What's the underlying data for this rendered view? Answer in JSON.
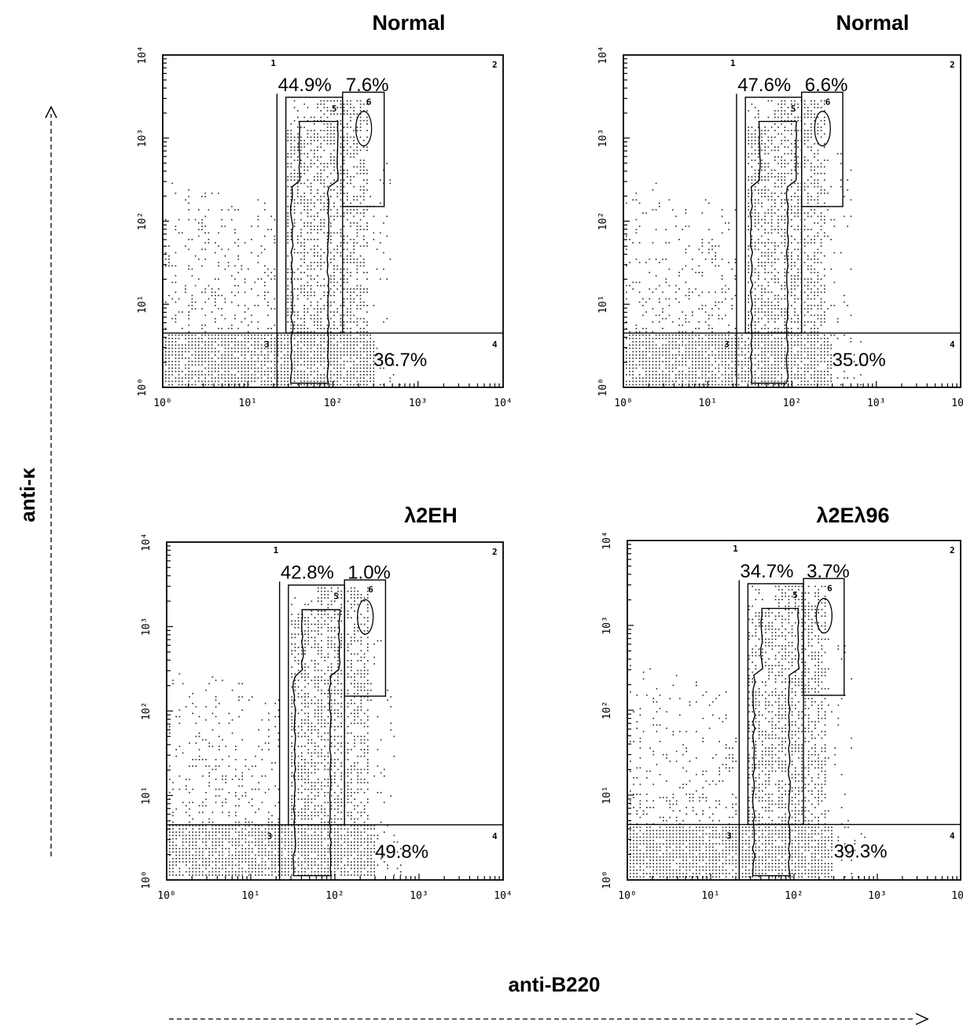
{
  "chart_data": {
    "type": "scatter",
    "xlabel": "anti-B220",
    "ylabel": "anti-κ",
    "xscale": "log",
    "yscale": "log",
    "xlim": [
      1,
      10000
    ],
    "ylim": [
      1,
      10000
    ],
    "x_tick_labels": [
      "10⁰",
      "10¹",
      "10²",
      "10³",
      "10⁴"
    ],
    "y_tick_labels": [
      "10⁰",
      "10¹",
      "10²",
      "10³",
      "10⁴"
    ],
    "gate_labels": [
      "1",
      "2",
      "3",
      "4",
      "5",
      "6"
    ],
    "panels": [
      {
        "title": "Normal",
        "pct_gate5": "44.9%",
        "pct_gate6": "7.6%",
        "pct_gate4": "36.7%"
      },
      {
        "title": "Normal",
        "pct_gate5": "47.6%",
        "pct_gate6": "6.6%",
        "pct_gate4": "35.0%"
      },
      {
        "title": "λ2EH",
        "pct_gate5": "42.8%",
        "pct_gate6": "1.0%",
        "pct_gate4": "49.8%"
      },
      {
        "title": "λ2Eλ96",
        "pct_gate5": "34.7%",
        "pct_gate6": "3.7%",
        "pct_gate4": "39.3%"
      }
    ]
  }
}
